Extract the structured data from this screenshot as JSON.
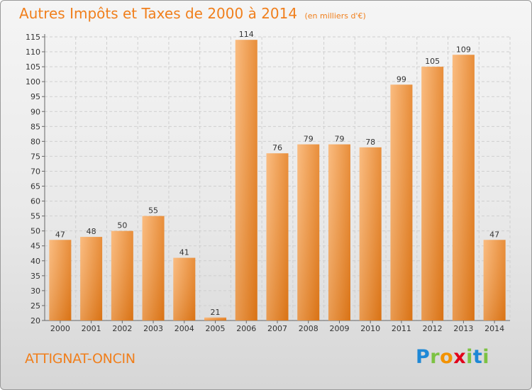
{
  "chart_data": {
    "type": "bar",
    "title": "Autres Impôts et Taxes de 2000 à 2014",
    "subtitle": "(en milliers d'€)",
    "categories": [
      "2000",
      "2001",
      "2002",
      "2003",
      "2004",
      "2005",
      "2006",
      "2007",
      "2008",
      "2009",
      "2010",
      "2011",
      "2012",
      "2013",
      "2014"
    ],
    "values": [
      47,
      48,
      50,
      55,
      41,
      21,
      114,
      76,
      79,
      79,
      78,
      99,
      105,
      109,
      47
    ],
    "ylim": [
      20,
      115
    ],
    "yticks": [
      20,
      25,
      30,
      35,
      40,
      45,
      50,
      55,
      60,
      65,
      70,
      75,
      80,
      85,
      90,
      95,
      100,
      105,
      110,
      115
    ],
    "grid": true,
    "xlabel": "",
    "ylabel": ""
  },
  "footer": {
    "town": "ATTIGNAT-ONCIN"
  },
  "logo": {
    "letters": [
      "P",
      "r",
      "o",
      "x",
      "i",
      "t",
      "i"
    ],
    "colors": [
      "#1e88d6",
      "#7cc242",
      "#f39200",
      "#e2001a",
      "#7cc242",
      "#1e88d6",
      "#7cc242"
    ]
  },
  "colors": {
    "accent": "#f07f1c",
    "bar_light": "#f8a85a",
    "bar_dark": "#e07918",
    "grid": "#cfcfcf"
  }
}
